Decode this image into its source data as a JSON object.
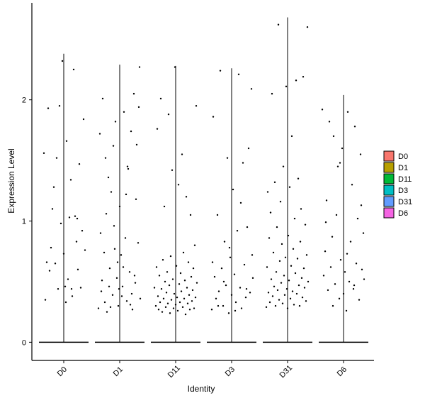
{
  "chart_data": {
    "type": "scatter",
    "title": "",
    "xlabel": "Identity",
    "ylabel": "Expression Level",
    "categories": [
      "D0",
      "D1",
      "D11",
      "D3",
      "D31",
      "D6"
    ],
    "ylim": [
      -0.15,
      2.8
    ],
    "yticks": [
      0,
      1,
      2
    ],
    "grid": false,
    "legend": {
      "placement": "right",
      "items": [
        {
          "label": "D0",
          "color": "#F8766D"
        },
        {
          "label": "D1",
          "color": "#B79F00"
        },
        {
          "label": "D11",
          "color": "#00BA38"
        },
        {
          "label": "D3",
          "color": "#00BFC4"
        },
        {
          "label": "D31",
          "color": "#619CFF"
        },
        {
          "label": "D6",
          "color": "#F564E3"
        }
      ]
    },
    "violins": [
      {
        "category": "D0",
        "max": 2.38
      },
      {
        "category": "D1",
        "max": 2.29
      },
      {
        "category": "D11",
        "max": 2.28
      },
      {
        "category": "D3",
        "max": 2.26
      },
      {
        "category": "D31",
        "max": 2.68
      },
      {
        "category": "D6",
        "max": 2.04
      }
    ],
    "points": {
      "D0": [
        {
          "dx": -0.28,
          "y": 1.56
        },
        {
          "dx": -0.22,
          "y": 1.93
        },
        {
          "dx": -0.2,
          "y": 0.59
        },
        {
          "dx": -0.18,
          "y": 0.78
        },
        {
          "dx": -0.14,
          "y": 1.28
        },
        {
          "dx": -0.12,
          "y": 0.65
        },
        {
          "dx": -0.1,
          "y": 1.52
        },
        {
          "dx": -0.08,
          "y": 0.44
        },
        {
          "dx": -0.06,
          "y": 1.95
        },
        {
          "dx": -0.04,
          "y": 0.98
        },
        {
          "dx": -0.02,
          "y": 2.32
        },
        {
          "dx": 0.0,
          "y": 0.73
        },
        {
          "dx": 0.02,
          "y": 0.46
        },
        {
          "dx": 0.04,
          "y": 1.66
        },
        {
          "dx": 0.06,
          "y": 0.52
        },
        {
          "dx": 0.08,
          "y": 1.03
        },
        {
          "dx": 0.1,
          "y": 1.34
        },
        {
          "dx": 0.12,
          "y": 0.38
        },
        {
          "dx": 0.14,
          "y": 2.25
        },
        {
          "dx": 0.16,
          "y": 1.04
        },
        {
          "dx": 0.18,
          "y": 0.83
        },
        {
          "dx": 0.2,
          "y": 0.6
        },
        {
          "dx": 0.22,
          "y": 1.47
        },
        {
          "dx": 0.24,
          "y": 0.45
        },
        {
          "dx": 0.26,
          "y": 0.92
        },
        {
          "dx": 0.28,
          "y": 1.84
        },
        {
          "dx": -0.26,
          "y": 0.35
        },
        {
          "dx": -0.16,
          "y": 1.1
        },
        {
          "dx": 0.03,
          "y": 0.33
        },
        {
          "dx": 0.19,
          "y": 1.02
        },
        {
          "dx": 0.3,
          "y": 0.76
        },
        {
          "dx": -0.24,
          "y": 0.66
        },
        {
          "dx": 0.11,
          "y": 0.44
        }
      ],
      "D1": [
        {
          "dx": -0.3,
          "y": 0.28
        },
        {
          "dx": -0.28,
          "y": 1.72
        },
        {
          "dx": -0.26,
          "y": 0.42
        },
        {
          "dx": -0.24,
          "y": 2.01
        },
        {
          "dx": -0.22,
          "y": 0.74
        },
        {
          "dx": -0.2,
          "y": 1.52
        },
        {
          "dx": -0.18,
          "y": 0.25
        },
        {
          "dx": -0.16,
          "y": 1.36
        },
        {
          "dx": -0.14,
          "y": 0.61
        },
        {
          "dx": -0.12,
          "y": 1.24
        },
        {
          "dx": -0.1,
          "y": 0.39
        },
        {
          "dx": -0.08,
          "y": 0.96
        },
        {
          "dx": -0.06,
          "y": 1.82
        },
        {
          "dx": -0.04,
          "y": 0.53
        },
        {
          "dx": -0.02,
          "y": 0.3
        },
        {
          "dx": 0.0,
          "y": 1.12
        },
        {
          "dx": 0.02,
          "y": 0.72
        },
        {
          "dx": 0.04,
          "y": 0.46
        },
        {
          "dx": 0.06,
          "y": 1.9
        },
        {
          "dx": 0.08,
          "y": 0.86
        },
        {
          "dx": 0.1,
          "y": 0.34
        },
        {
          "dx": 0.12,
          "y": 1.43
        },
        {
          "dx": 0.14,
          "y": 0.58
        },
        {
          "dx": 0.16,
          "y": 1.74
        },
        {
          "dx": 0.18,
          "y": 0.27
        },
        {
          "dx": 0.2,
          "y": 2.05
        },
        {
          "dx": 0.22,
          "y": 0.49
        },
        {
          "dx": 0.24,
          "y": 1.63
        },
        {
          "dx": 0.26,
          "y": 0.82
        },
        {
          "dx": 0.28,
          "y": 2.27
        },
        {
          "dx": -0.27,
          "y": 0.9
        },
        {
          "dx": -0.21,
          "y": 0.33
        },
        {
          "dx": -0.15,
          "y": 0.46
        },
        {
          "dx": -0.09,
          "y": 1.62
        },
        {
          "dx": -0.03,
          "y": 0.66
        },
        {
          "dx": 0.03,
          "y": 0.38
        },
        {
          "dx": 0.09,
          "y": 1.22
        },
        {
          "dx": 0.15,
          "y": 0.31
        },
        {
          "dx": 0.21,
          "y": 0.55
        },
        {
          "dx": 0.27,
          "y": 1.94
        },
        {
          "dx": -0.25,
          "y": 0.51
        },
        {
          "dx": -0.19,
          "y": 1.06
        },
        {
          "dx": -0.13,
          "y": 0.29
        },
        {
          "dx": -0.07,
          "y": 0.77
        },
        {
          "dx": -0.01,
          "y": 0.44
        },
        {
          "dx": 0.05,
          "y": 0.62
        },
        {
          "dx": 0.11,
          "y": 1.45
        },
        {
          "dx": 0.17,
          "y": 0.4
        },
        {
          "dx": 0.23,
          "y": 1.18
        },
        {
          "dx": 0.29,
          "y": 0.36
        }
      ],
      "D11": [
        {
          "dx": -0.3,
          "y": 0.45
        },
        {
          "dx": -0.28,
          "y": 0.3
        },
        {
          "dx": -0.27,
          "y": 0.62
        },
        {
          "dx": -0.26,
          "y": 1.76
        },
        {
          "dx": -0.25,
          "y": 0.38
        },
        {
          "dx": -0.24,
          "y": 0.27
        },
        {
          "dx": -0.23,
          "y": 0.55
        },
        {
          "dx": -0.22,
          "y": 0.33
        },
        {
          "dx": -0.21,
          "y": 2.01
        },
        {
          "dx": -0.2,
          "y": 0.44
        },
        {
          "dx": -0.19,
          "y": 0.25
        },
        {
          "dx": -0.18,
          "y": 0.68
        },
        {
          "dx": -0.17,
          "y": 0.36
        },
        {
          "dx": -0.16,
          "y": 1.12
        },
        {
          "dx": -0.15,
          "y": 0.5
        },
        {
          "dx": -0.14,
          "y": 0.29
        },
        {
          "dx": -0.13,
          "y": 0.41
        },
        {
          "dx": -0.12,
          "y": 0.58
        },
        {
          "dx": -0.11,
          "y": 0.32
        },
        {
          "dx": -0.1,
          "y": 1.88
        },
        {
          "dx": -0.09,
          "y": 0.47
        },
        {
          "dx": -0.08,
          "y": 0.24
        },
        {
          "dx": -0.07,
          "y": 0.71
        },
        {
          "dx": -0.06,
          "y": 0.35
        },
        {
          "dx": -0.05,
          "y": 1.42
        },
        {
          "dx": -0.04,
          "y": 0.52
        },
        {
          "dx": -0.03,
          "y": 0.28
        },
        {
          "dx": -0.02,
          "y": 0.4
        },
        {
          "dx": -0.01,
          "y": 2.27
        },
        {
          "dx": 0.0,
          "y": 0.31
        },
        {
          "dx": 0.01,
          "y": 0.63
        },
        {
          "dx": 0.02,
          "y": 0.37
        },
        {
          "dx": 0.03,
          "y": 0.26
        },
        {
          "dx": 0.04,
          "y": 1.3
        },
        {
          "dx": 0.05,
          "y": 0.48
        },
        {
          "dx": 0.06,
          "y": 0.33
        },
        {
          "dx": 0.07,
          "y": 0.57
        },
        {
          "dx": 0.08,
          "y": 0.42
        },
        {
          "dx": 0.09,
          "y": 1.55
        },
        {
          "dx": 0.1,
          "y": 0.29
        },
        {
          "dx": 0.11,
          "y": 0.74
        },
        {
          "dx": 0.12,
          "y": 0.36
        },
        {
          "dx": 0.13,
          "y": 0.51
        },
        {
          "dx": 0.14,
          "y": 0.23
        },
        {
          "dx": 0.15,
          "y": 1.2
        },
        {
          "dx": 0.16,
          "y": 0.45
        },
        {
          "dx": 0.17,
          "y": 0.32
        },
        {
          "dx": 0.18,
          "y": 0.66
        },
        {
          "dx": 0.19,
          "y": 0.39
        },
        {
          "dx": 0.2,
          "y": 0.27
        },
        {
          "dx": 0.21,
          "y": 1.05
        },
        {
          "dx": 0.22,
          "y": 0.54
        },
        {
          "dx": 0.23,
          "y": 0.34
        },
        {
          "dx": 0.24,
          "y": 0.43
        },
        {
          "dx": 0.25,
          "y": 0.61
        },
        {
          "dx": 0.26,
          "y": 0.28
        },
        {
          "dx": 0.27,
          "y": 0.8
        },
        {
          "dx": 0.28,
          "y": 0.37
        },
        {
          "dx": 0.29,
          "y": 1.95
        },
        {
          "dx": 0.3,
          "y": 0.49
        }
      ],
      "D3": [
        {
          "dx": -0.28,
          "y": 0.27
        },
        {
          "dx": -0.26,
          "y": 1.86
        },
        {
          "dx": -0.24,
          "y": 0.54
        },
        {
          "dx": -0.22,
          "y": 0.36
        },
        {
          "dx": -0.2,
          "y": 1.05
        },
        {
          "dx": -0.18,
          "y": 0.42
        },
        {
          "dx": -0.16,
          "y": 2.24
        },
        {
          "dx": -0.14,
          "y": 0.61
        },
        {
          "dx": -0.12,
          "y": 0.3
        },
        {
          "dx": -0.1,
          "y": 0.83
        },
        {
          "dx": -0.08,
          "y": 0.47
        },
        {
          "dx": -0.06,
          "y": 1.52
        },
        {
          "dx": -0.04,
          "y": 0.24
        },
        {
          "dx": -0.02,
          "y": 0.7
        },
        {
          "dx": 0.0,
          "y": 0.39
        },
        {
          "dx": 0.02,
          "y": 1.26
        },
        {
          "dx": 0.04,
          "y": 0.56
        },
        {
          "dx": 0.06,
          "y": 0.33
        },
        {
          "dx": 0.08,
          "y": 0.92
        },
        {
          "dx": 0.1,
          "y": 2.21
        },
        {
          "dx": 0.12,
          "y": 0.45
        },
        {
          "dx": 0.14,
          "y": 0.28
        },
        {
          "dx": 0.16,
          "y": 1.48
        },
        {
          "dx": 0.18,
          "y": 0.64
        },
        {
          "dx": 0.2,
          "y": 0.37
        },
        {
          "dx": 0.22,
          "y": 0.95
        },
        {
          "dx": 0.24,
          "y": 1.6
        },
        {
          "dx": 0.26,
          "y": 0.41
        },
        {
          "dx": 0.28,
          "y": 2.09
        },
        {
          "dx": 0.3,
          "y": 0.53
        },
        {
          "dx": -0.27,
          "y": 0.66
        },
        {
          "dx": -0.19,
          "y": 0.3
        },
        {
          "dx": -0.11,
          "y": 0.5
        },
        {
          "dx": -0.03,
          "y": 0.78
        },
        {
          "dx": 0.05,
          "y": 0.26
        },
        {
          "dx": 0.13,
          "y": 1.15
        },
        {
          "dx": 0.21,
          "y": 0.44
        },
        {
          "dx": 0.29,
          "y": 0.72
        }
      ],
      "D31": [
        {
          "dx": -0.3,
          "y": 0.29
        },
        {
          "dx": -0.29,
          "y": 0.62
        },
        {
          "dx": -0.28,
          "y": 1.24
        },
        {
          "dx": -0.27,
          "y": 0.41
        },
        {
          "dx": -0.26,
          "y": 0.86
        },
        {
          "dx": -0.25,
          "y": 0.33
        },
        {
          "dx": -0.24,
          "y": 1.07
        },
        {
          "dx": -0.23,
          "y": 0.52
        },
        {
          "dx": -0.22,
          "y": 2.05
        },
        {
          "dx": -0.21,
          "y": 0.38
        },
        {
          "dx": -0.2,
          "y": 0.74
        },
        {
          "dx": -0.19,
          "y": 0.46
        },
        {
          "dx": -0.18,
          "y": 1.32
        },
        {
          "dx": -0.17,
          "y": 0.3
        },
        {
          "dx": -0.16,
          "y": 0.58
        },
        {
          "dx": -0.15,
          "y": 0.95
        },
        {
          "dx": -0.14,
          "y": 0.43
        },
        {
          "dx": -0.13,
          "y": 2.62
        },
        {
          "dx": -0.12,
          "y": 0.35
        },
        {
          "dx": -0.11,
          "y": 0.67
        },
        {
          "dx": -0.1,
          "y": 1.16
        },
        {
          "dx": -0.09,
          "y": 0.49
        },
        {
          "dx": -0.08,
          "y": 0.81
        },
        {
          "dx": -0.07,
          "y": 0.32
        },
        {
          "dx": -0.06,
          "y": 1.45
        },
        {
          "dx": -0.05,
          "y": 0.55
        },
        {
          "dx": -0.04,
          "y": 0.39
        },
        {
          "dx": -0.03,
          "y": 0.7
        },
        {
          "dx": -0.02,
          "y": 2.11
        },
        {
          "dx": -0.01,
          "y": 0.44
        },
        {
          "dx": 0.0,
          "y": 0.28
        },
        {
          "dx": 0.01,
          "y": 0.88
        },
        {
          "dx": 0.02,
          "y": 0.51
        },
        {
          "dx": 0.03,
          "y": 1.28
        },
        {
          "dx": 0.04,
          "y": 0.36
        },
        {
          "dx": 0.05,
          "y": 0.63
        },
        {
          "dx": 0.06,
          "y": 1.7
        },
        {
          "dx": 0.07,
          "y": 0.42
        },
        {
          "dx": 0.08,
          "y": 0.77
        },
        {
          "dx": 0.09,
          "y": 0.31
        },
        {
          "dx": 0.1,
          "y": 1.02
        },
        {
          "dx": 0.11,
          "y": 0.57
        },
        {
          "dx": 0.12,
          "y": 2.16
        },
        {
          "dx": 0.13,
          "y": 0.4
        },
        {
          "dx": 0.14,
          "y": 0.69
        },
        {
          "dx": 0.15,
          "y": 1.35
        },
        {
          "dx": 0.16,
          "y": 0.47
        },
        {
          "dx": 0.17,
          "y": 0.3
        },
        {
          "dx": 0.18,
          "y": 0.83
        },
        {
          "dx": 0.19,
          "y": 1.1
        },
        {
          "dx": 0.2,
          "y": 0.53
        },
        {
          "dx": 0.21,
          "y": 0.37
        },
        {
          "dx": 0.22,
          "y": 2.19
        },
        {
          "dx": 0.23,
          "y": 0.61
        },
        {
          "dx": 0.24,
          "y": 0.45
        },
        {
          "dx": 0.25,
          "y": 0.97
        },
        {
          "dx": 0.26,
          "y": 0.34
        },
        {
          "dx": 0.27,
          "y": 0.72
        },
        {
          "dx": 0.28,
          "y": 2.6
        },
        {
          "dx": 0.29,
          "y": 0.5
        }
      ],
      "D6": [
        {
          "dx": -0.3,
          "y": 1.92
        },
        {
          "dx": -0.28,
          "y": 0.55
        },
        {
          "dx": -0.26,
          "y": 0.75
        },
        {
          "dx": -0.24,
          "y": 1.17
        },
        {
          "dx": -0.22,
          "y": 0.43
        },
        {
          "dx": -0.2,
          "y": 1.82
        },
        {
          "dx": -0.18,
          "y": 0.62
        },
        {
          "dx": -0.16,
          "y": 0.87
        },
        {
          "dx": -0.14,
          "y": 1.7
        },
        {
          "dx": -0.12,
          "y": 0.48
        },
        {
          "dx": -0.1,
          "y": 1.05
        },
        {
          "dx": -0.08,
          "y": 1.45
        },
        {
          "dx": -0.06,
          "y": 0.36
        },
        {
          "dx": -0.04,
          "y": 0.68
        },
        {
          "dx": -0.02,
          "y": 1.6
        },
        {
          "dx": 0.0,
          "y": 0.4
        },
        {
          "dx": 0.02,
          "y": 0.58
        },
        {
          "dx": 0.04,
          "y": 0.26
        },
        {
          "dx": 0.06,
          "y": 1.9
        },
        {
          "dx": 0.08,
          "y": 0.5
        },
        {
          "dx": 0.1,
          "y": 0.83
        },
        {
          "dx": 0.12,
          "y": 1.3
        },
        {
          "dx": 0.14,
          "y": 0.44
        },
        {
          "dx": 0.16,
          "y": 1.78
        },
        {
          "dx": 0.18,
          "y": 0.65
        },
        {
          "dx": 0.2,
          "y": 1.02
        },
        {
          "dx": 0.22,
          "y": 0.35
        },
        {
          "dx": 0.24,
          "y": 1.55
        },
        {
          "dx": 0.26,
          "y": 0.6
        },
        {
          "dx": 0.28,
          "y": 0.9
        },
        {
          "dx": -0.25,
          "y": 0.99
        },
        {
          "dx": -0.15,
          "y": 0.3
        },
        {
          "dx": -0.05,
          "y": 1.48
        },
        {
          "dx": 0.05,
          "y": 0.73
        },
        {
          "dx": 0.15,
          "y": 0.47
        },
        {
          "dx": 0.25,
          "y": 1.13
        },
        {
          "dx": 0.29,
          "y": 0.52
        }
      ]
    }
  }
}
